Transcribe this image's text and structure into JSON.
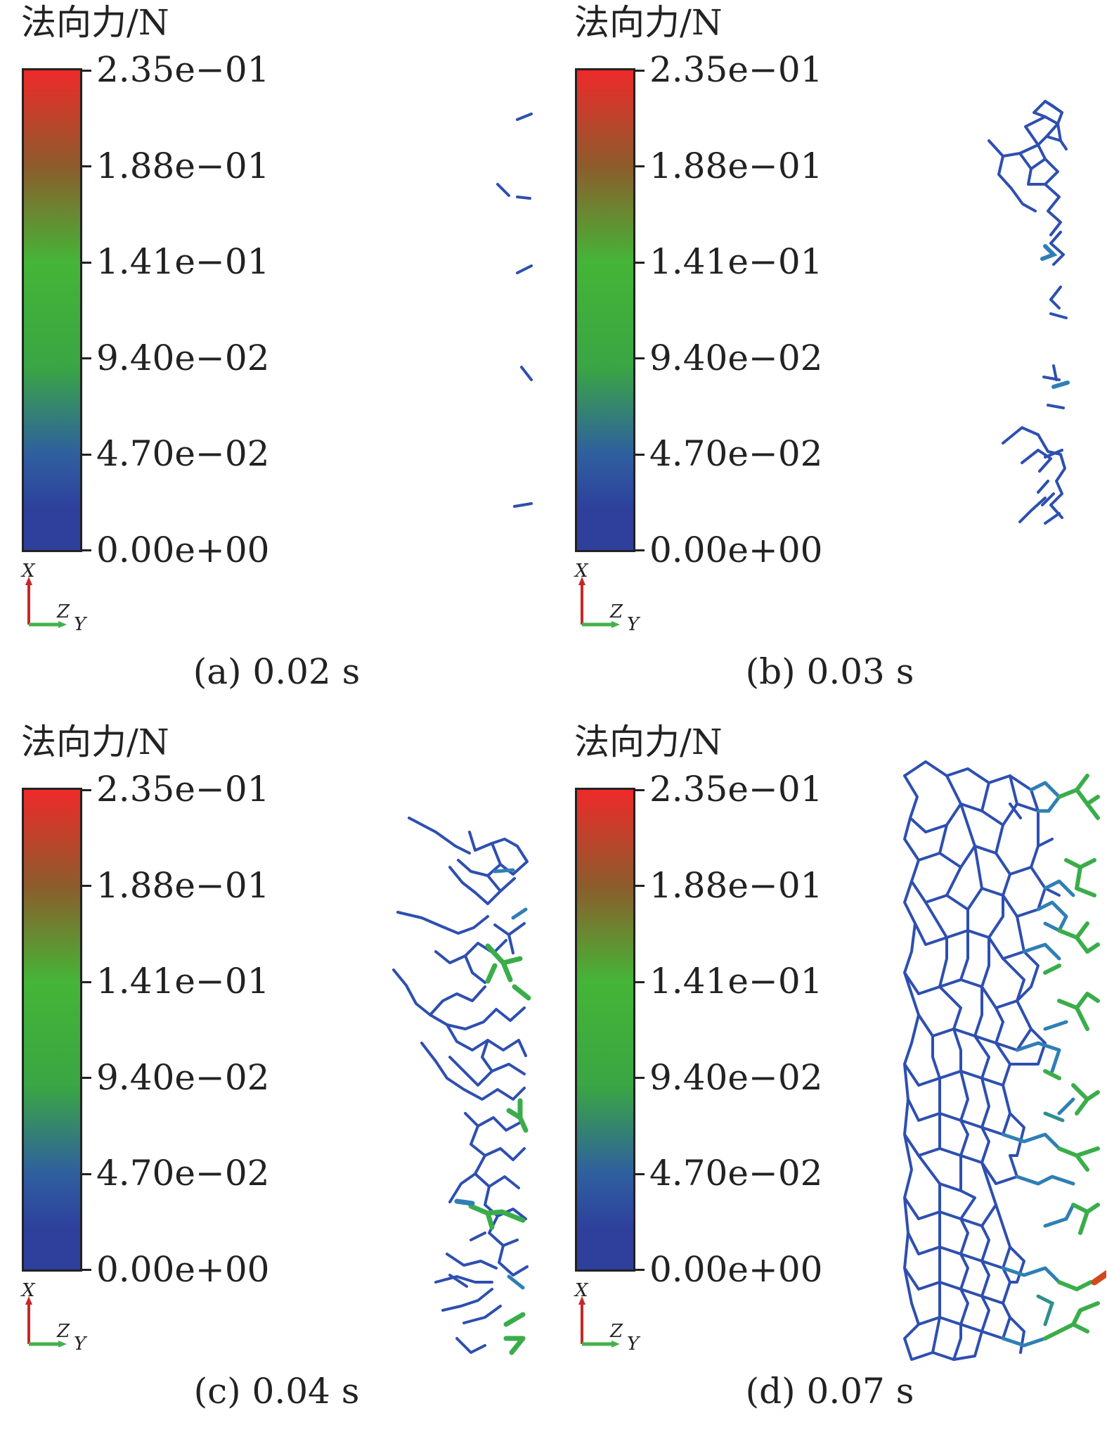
{
  "colorbar": {
    "title": "法向力/N",
    "ticks": [
      "2.35e−01",
      "1.88e−01",
      "1.41e−01",
      "9.40e−02",
      "4.70e−02",
      "0.00e+00"
    ],
    "colors": [
      "#ee2a2a",
      "#8d5c2c",
      "#44b537",
      "#3aa544",
      "#2f5f9f",
      "#2e3f9c"
    ]
  },
  "axes": {
    "x": "X",
    "z": "Z",
    "y": "Y"
  },
  "panels": [
    {
      "id": "a",
      "caption": "(a) 0.02 s"
    },
    {
      "id": "b",
      "caption": "(b) 0.03 s"
    },
    {
      "id": "c",
      "caption": "(c) 0.04 s"
    },
    {
      "id": "d",
      "caption": "(d) 0.07 s"
    }
  ]
}
